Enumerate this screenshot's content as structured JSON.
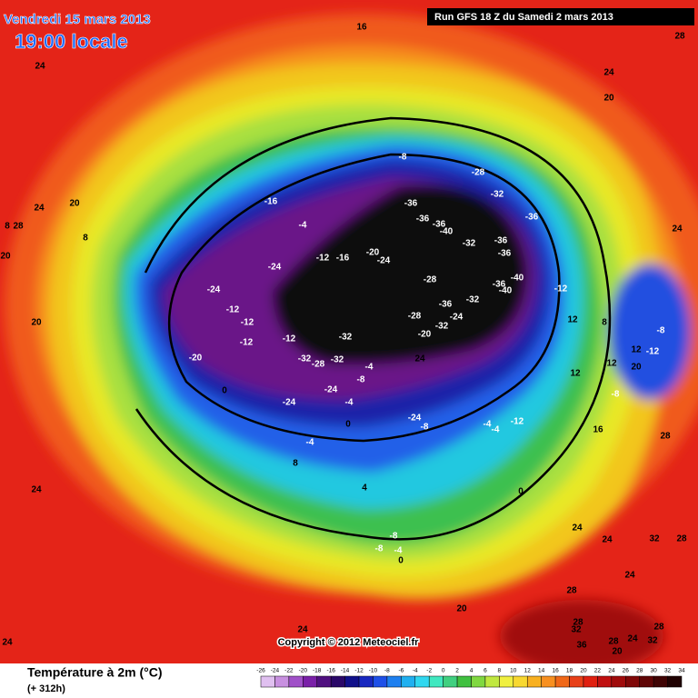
{
  "header": {
    "date": "Vendredi 15 mars 2013",
    "time": "19:00 locale",
    "run": "Run GFS 18 Z du Samedi 2 mars 2013"
  },
  "footer": {
    "title": "Température à 2m (°C)",
    "lead": "(+ 312h)",
    "copyright": "Copyright © 2012 Meteociel.fr"
  },
  "legend": {
    "ticks": [
      -26,
      -24,
      -22,
      -20,
      -18,
      -16,
      -14,
      -12,
      -10,
      -8,
      -6,
      -4,
      -2,
      0,
      2,
      4,
      6,
      8,
      10,
      12,
      14,
      16,
      18,
      20,
      22,
      24,
      26,
      28,
      30,
      32,
      34
    ]
  },
  "map": {
    "contour_labels": [
      16,
      28,
      24,
      24,
      20,
      -8,
      -28,
      -32,
      -16,
      -36,
      -36,
      24,
      20,
      -36,
      -36,
      -40,
      -4,
      8,
      28,
      24,
      8,
      -32,
      -36,
      -20,
      -36,
      -12,
      -16,
      -24,
      20,
      -24,
      -40,
      -28,
      -36,
      -40,
      -12,
      -24,
      -32,
      -36,
      -12,
      -12,
      -28,
      -24,
      12,
      -32,
      20,
      -12,
      -32,
      -12,
      -20,
      8,
      -8,
      -20,
      -32,
      -28,
      -32,
      24,
      -4,
      12,
      12,
      -12,
      20,
      -8,
      0,
      -24,
      12,
      -24,
      -8,
      -4,
      -24,
      -8,
      -4,
      -4,
      -12,
      0,
      16,
      28,
      -4,
      8,
      24,
      4,
      0,
      -8,
      -8,
      -4,
      0,
      24,
      24,
      24,
      32,
      28,
      28,
      20,
      24,
      28,
      32,
      28,
      24,
      28,
      32,
      36,
      20,
      24
    ]
  }
}
